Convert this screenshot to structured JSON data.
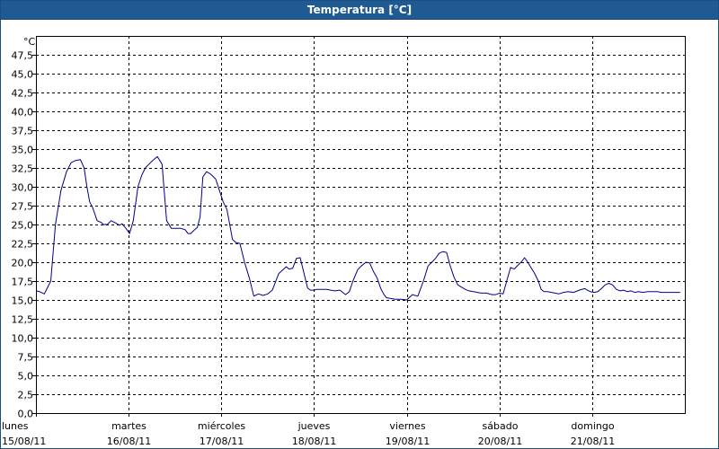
{
  "chart_data": {
    "type": "line",
    "title": "Temperatura [°C]",
    "ylabel": "°C",
    "ylim": [
      0,
      50
    ],
    "yticks": [
      "0,0",
      "2,5",
      "5,0",
      "7,5",
      "10,0",
      "12,5",
      "15,0",
      "17,5",
      "20,0",
      "22,5",
      "25,0",
      "27,5",
      "30,0",
      "32,5",
      "35,0",
      "37,5",
      "40,0",
      "42,5",
      "45,0",
      "47,5"
    ],
    "xlim": [
      0,
      7
    ],
    "xticks": [
      {
        "x": 0,
        "day": "lunes",
        "date": "15/08/11"
      },
      {
        "x": 1,
        "day": "martes",
        "date": "16/08/11"
      },
      {
        "x": 2,
        "day": "miércoles",
        "date": "17/08/11"
      },
      {
        "x": 3,
        "day": "jueves",
        "date": "18/08/11"
      },
      {
        "x": 4,
        "day": "viernes",
        "date": "19/08/11"
      },
      {
        "x": 5,
        "day": "sábado",
        "date": "20/08/11"
      },
      {
        "x": 6,
        "day": "domingo",
        "date": "21/08/11"
      }
    ],
    "grid": true,
    "colors": {
      "line": "#00008b",
      "grid": "#000000",
      "title_bg": "#1f5a92"
    },
    "series": [
      {
        "x": [
          0,
          0.04,
          0.09,
          0.16,
          0.21,
          0.27,
          0.33,
          0.38,
          0.43,
          0.48,
          0.52,
          0.55,
          0.58,
          0.61,
          0.66,
          0.7,
          0.73,
          0.77,
          0.81,
          0.86,
          0.9,
          0.93,
          0.97,
          1.01,
          1.05,
          1.1,
          1.14,
          1.18,
          1.22,
          1.26,
          1.31,
          1.36,
          1.41,
          1.46,
          1.51,
          1.56,
          1.61,
          1.64,
          1.67,
          1.71,
          1.74,
          1.77,
          1.8,
          1.84,
          1.87,
          1.9,
          1.94,
          1.98,
          2.02,
          2.06,
          2.12,
          2.16,
          2.2,
          2.25,
          2.3,
          2.35,
          2.4,
          2.45,
          2.5,
          2.55,
          2.62,
          2.7,
          2.73,
          2.77,
          2.81,
          2.85,
          2.89,
          2.93,
          2.96,
          3.0,
          3.03,
          3.06,
          3.1,
          3.14,
          3.18,
          3.22,
          3.28,
          3.34,
          3.38,
          3.42,
          3.47,
          3.51,
          3.56,
          3.6,
          3.64,
          3.68,
          3.72,
          3.75,
          3.78,
          3.82,
          3.88,
          3.94,
          4.0,
          4.06,
          4.12,
          4.18,
          4.23,
          4.27,
          4.31,
          4.35,
          4.39,
          4.43,
          4.47,
          4.51,
          4.55,
          4.59,
          4.63,
          4.67,
          4.72,
          4.8,
          4.86,
          4.92,
          4.96,
          5.0,
          5.04,
          5.08,
          5.12,
          5.16,
          5.2,
          5.24,
          5.27,
          5.3,
          5.34,
          5.38,
          5.42,
          5.45,
          5.48,
          5.52,
          5.56,
          5.6,
          5.64,
          5.69,
          5.74,
          5.8,
          5.86,
          5.92,
          5.98,
          6.02,
          6.06,
          6.1,
          6.14,
          6.18,
          6.22,
          6.26,
          6.3,
          6.34,
          6.38,
          6.42,
          6.46,
          6.5,
          6.55,
          6.6,
          6.65,
          6.7,
          6.75,
          6.95
        ],
        "values": [
          16.2,
          16.1,
          15.8,
          17.5,
          25.0,
          29.5,
          32.0,
          33.2,
          33.5,
          33.6,
          32.5,
          30.0,
          28.0,
          27.3,
          25.5,
          25.3,
          25.0,
          25.0,
          25.5,
          25.2,
          24.9,
          25.1,
          24.5,
          23.8,
          25.5,
          30.0,
          31.5,
          32.5,
          33.0,
          33.5,
          34.0,
          33.0,
          25.5,
          24.5,
          24.5,
          24.5,
          24.3,
          23.8,
          23.8,
          24.3,
          24.6,
          26.0,
          31.3,
          32.0,
          31.8,
          31.5,
          31.0,
          29.5,
          28.0,
          27.0,
          23.0,
          22.6,
          22.5,
          20.0,
          18.0,
          15.5,
          15.8,
          15.6,
          15.8,
          16.3,
          18.5,
          19.4,
          19.1,
          19.2,
          20.5,
          20.6,
          18.6,
          16.6,
          16.3,
          16.3,
          16.4,
          16.4,
          16.4,
          16.4,
          16.3,
          16.2,
          16.3,
          15.7,
          16.1,
          17.5,
          19.0,
          19.5,
          20.0,
          19.9,
          18.8,
          17.9,
          16.5,
          15.8,
          15.3,
          15.2,
          15.1,
          15.1,
          15.0,
          15.7,
          15.5,
          17.5,
          19.5,
          20.0,
          20.5,
          21.2,
          21.4,
          21.3,
          19.5,
          18.0,
          17.0,
          16.7,
          16.4,
          16.2,
          16.1,
          15.9,
          15.9,
          15.7,
          15.7,
          15.9,
          15.8,
          17.6,
          19.3,
          19.1,
          19.6,
          20.1,
          20.6,
          20.1,
          19.3,
          18.5,
          17.5,
          16.4,
          16.1,
          16.1,
          16.0,
          15.9,
          15.8,
          16.0,
          16.1,
          16.0,
          16.3,
          16.5,
          16.1,
          16.0,
          16.1,
          16.5,
          17.0,
          17.2,
          17.0,
          16.4,
          16.2,
          16.3,
          16.1,
          16.2,
          16.0,
          16.1,
          16.0,
          16.1,
          16.1,
          16.1,
          16.0,
          16.0
        ]
      }
    ]
  }
}
